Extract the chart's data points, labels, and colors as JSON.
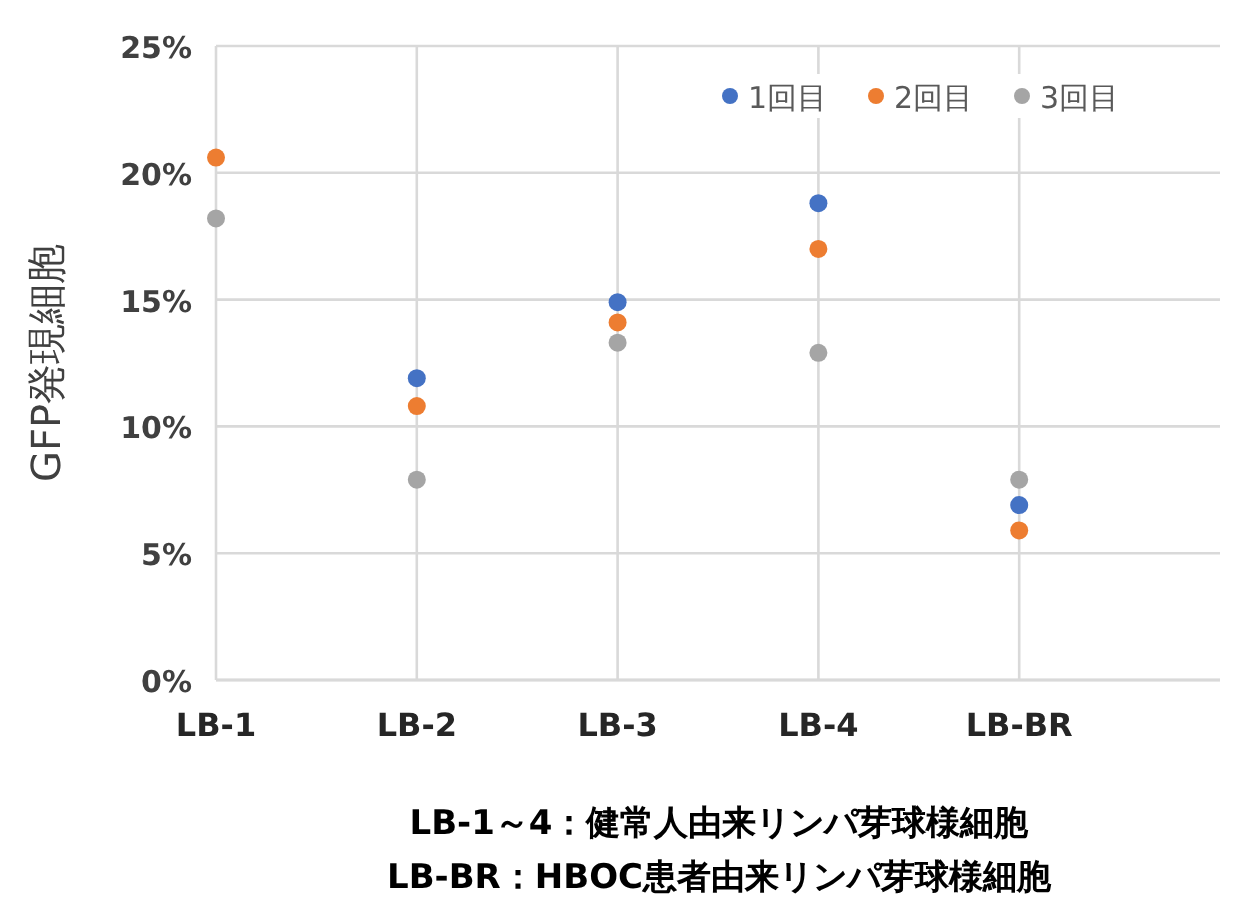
{
  "chart_data": {
    "type": "scatter",
    "ylabel": "GFP発現細胞",
    "categories": [
      "LB-1",
      "LB-2",
      "LB-3",
      "LB-4",
      "LB-BR"
    ],
    "series": [
      {
        "name": "1回目",
        "color": "#4472c4",
        "values": [
          null,
          11.9,
          14.9,
          18.8,
          6.9
        ]
      },
      {
        "name": "2回目",
        "color": "#ed7d31",
        "values": [
          20.6,
          10.8,
          14.1,
          17.0,
          5.9
        ]
      },
      {
        "name": "3回目",
        "color": "#a5a5a5",
        "values": [
          18.2,
          7.9,
          13.3,
          12.9,
          7.9
        ]
      }
    ],
    "ylim": [
      0,
      25
    ],
    "yticks": [
      {
        "value": 0,
        "label": "0%"
      },
      {
        "value": 5,
        "label": "5%"
      },
      {
        "value": 10,
        "label": "10%"
      },
      {
        "value": 15,
        "label": "15%"
      },
      {
        "value": 20,
        "label": "20%"
      },
      {
        "value": 25,
        "label": "25%"
      }
    ],
    "grid": true,
    "legend": "top right",
    "marker": "circle",
    "annotations": [
      "LB-1～4：健常人由来リンパ芽球様細胞",
      "LB-BR：HBOC患者由来リンパ芽球様細胞"
    ]
  }
}
